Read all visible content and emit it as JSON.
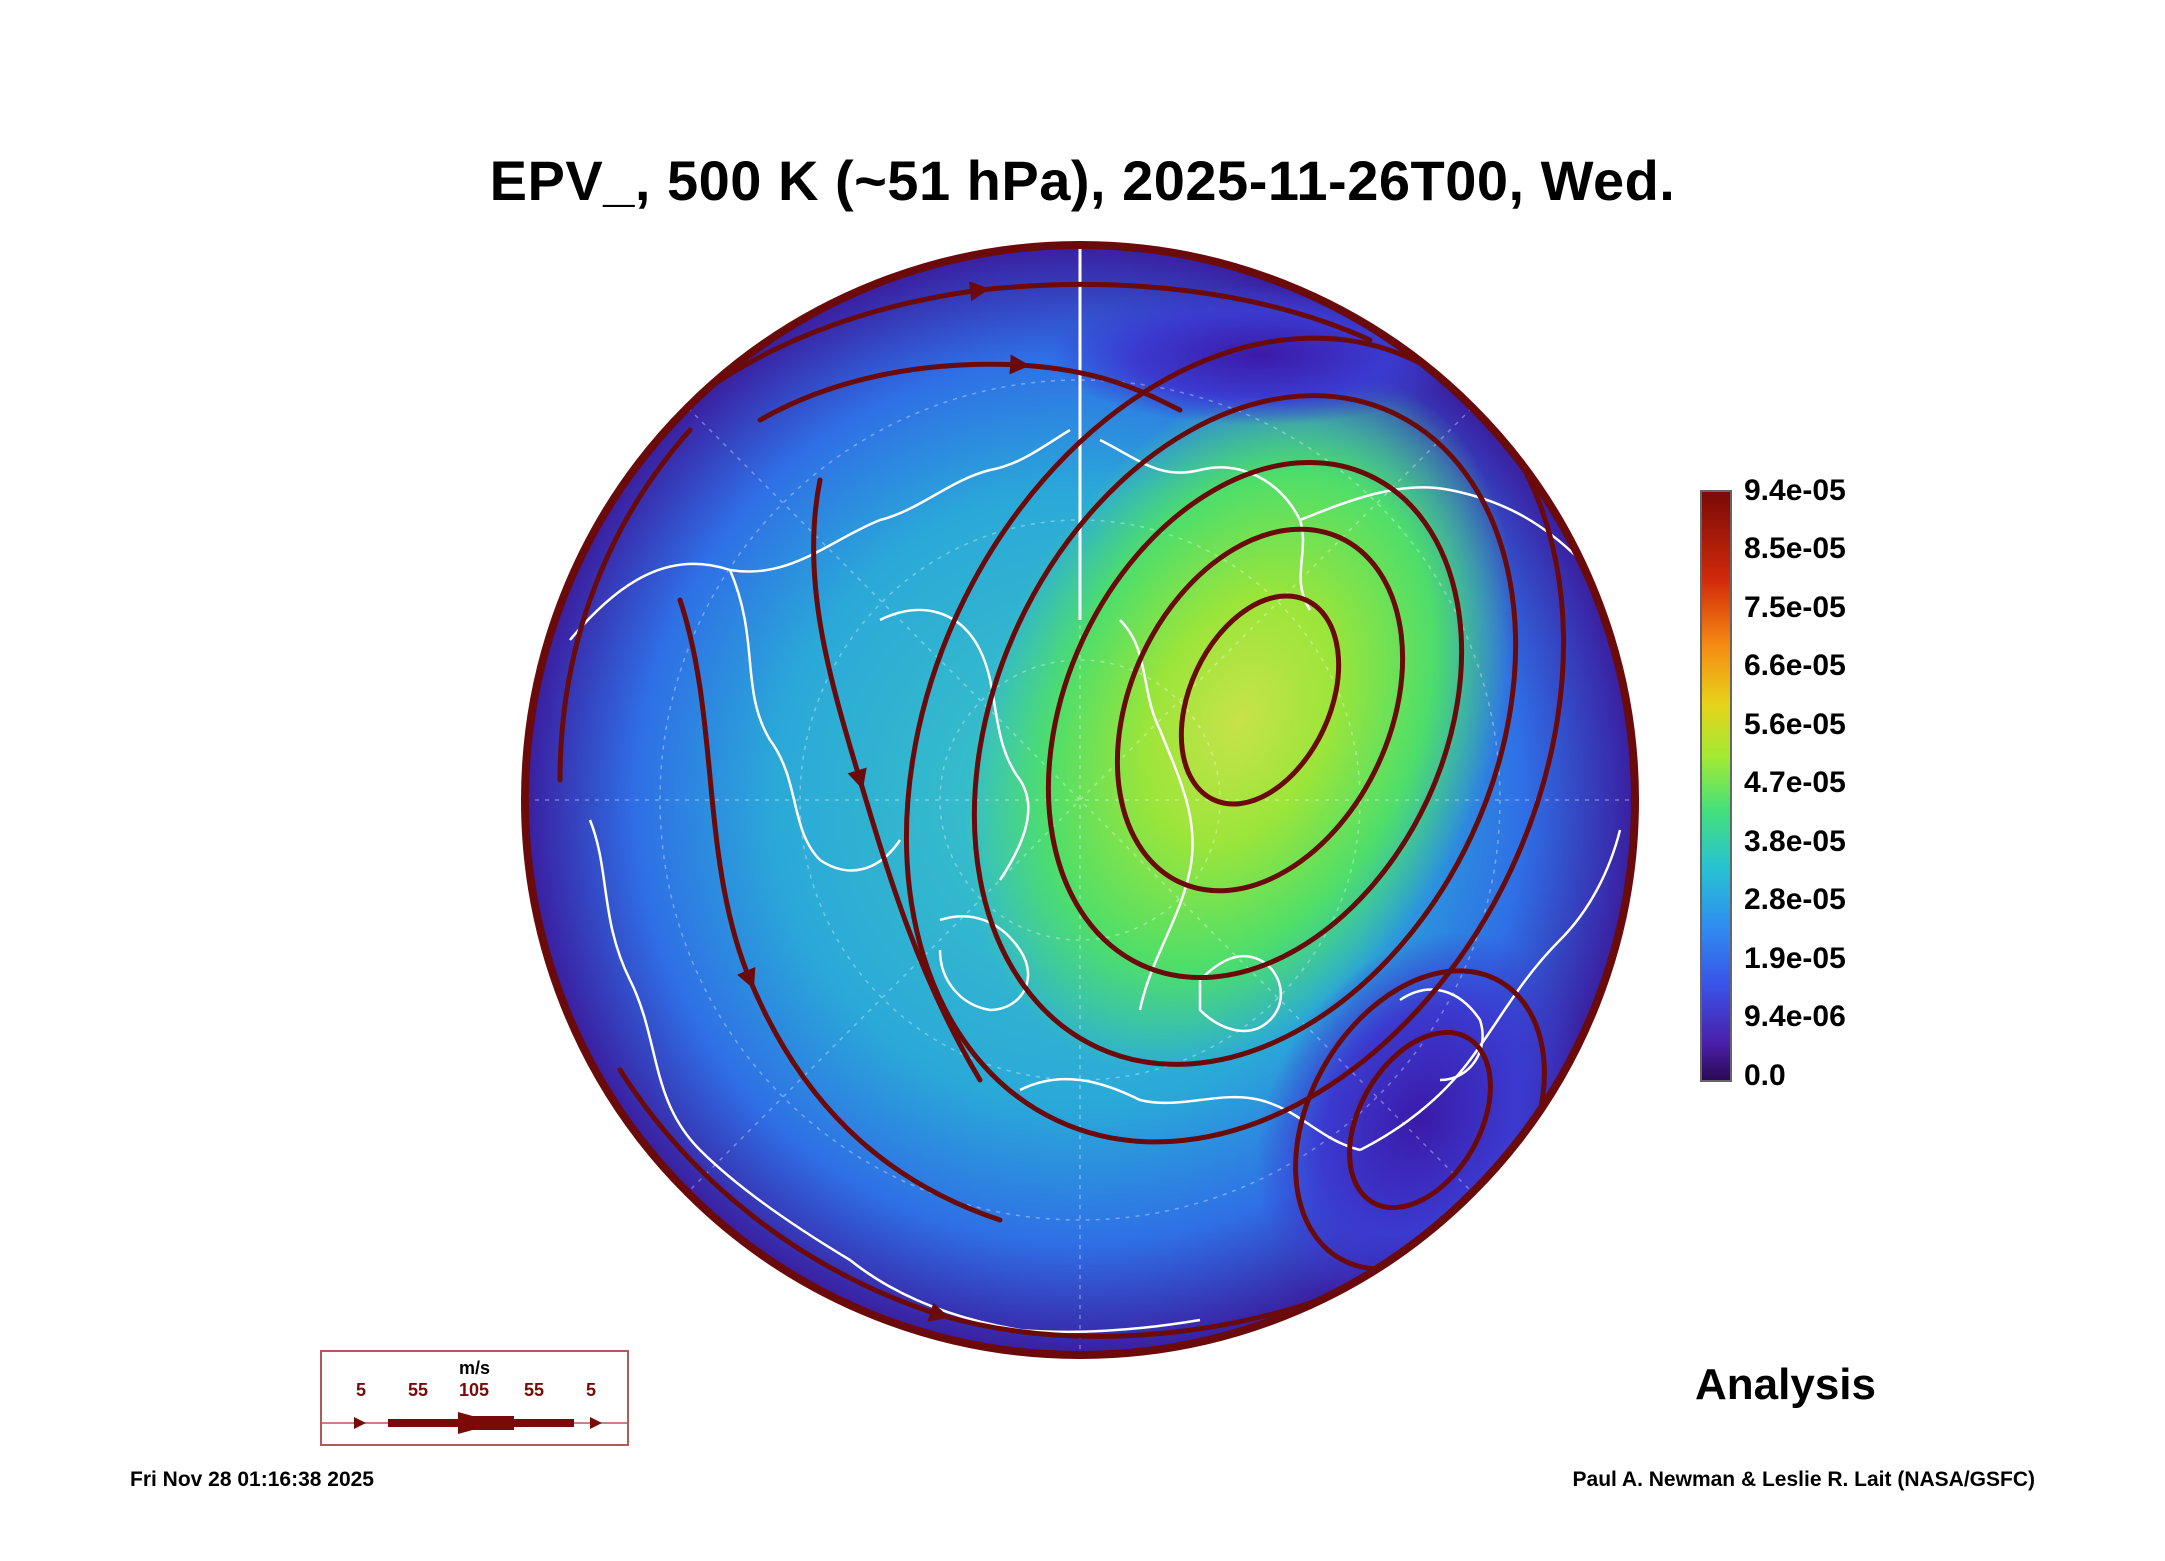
{
  "title": "EPV_, 500 K (~51 hPa), 2025-11-26T00, Wed.",
  "colorbar": {
    "labels": [
      "9.4e-05",
      "8.5e-05",
      "7.5e-05",
      "6.6e-05",
      "5.6e-05",
      "4.7e-05",
      "3.8e-05",
      "2.8e-05",
      "1.9e-05",
      "9.4e-06",
      "0.0"
    ]
  },
  "analysis_label": "Analysis",
  "wind_legend": {
    "unit": "m/s",
    "ticks": [
      "5",
      "55",
      "105",
      "55",
      "5"
    ]
  },
  "footer": {
    "timestamp": "Fri Nov 28 01:16:38 2025",
    "credit": "Paul A. Newman & Leslie R. Lait (NASA/GSFC)"
  },
  "colors": {
    "streamline": "#6b0a0a",
    "coastline": "#ffffff",
    "field_low": "#3a1ea0",
    "field_mid": "#2fb4e0",
    "field_high": "#9be53a"
  }
}
